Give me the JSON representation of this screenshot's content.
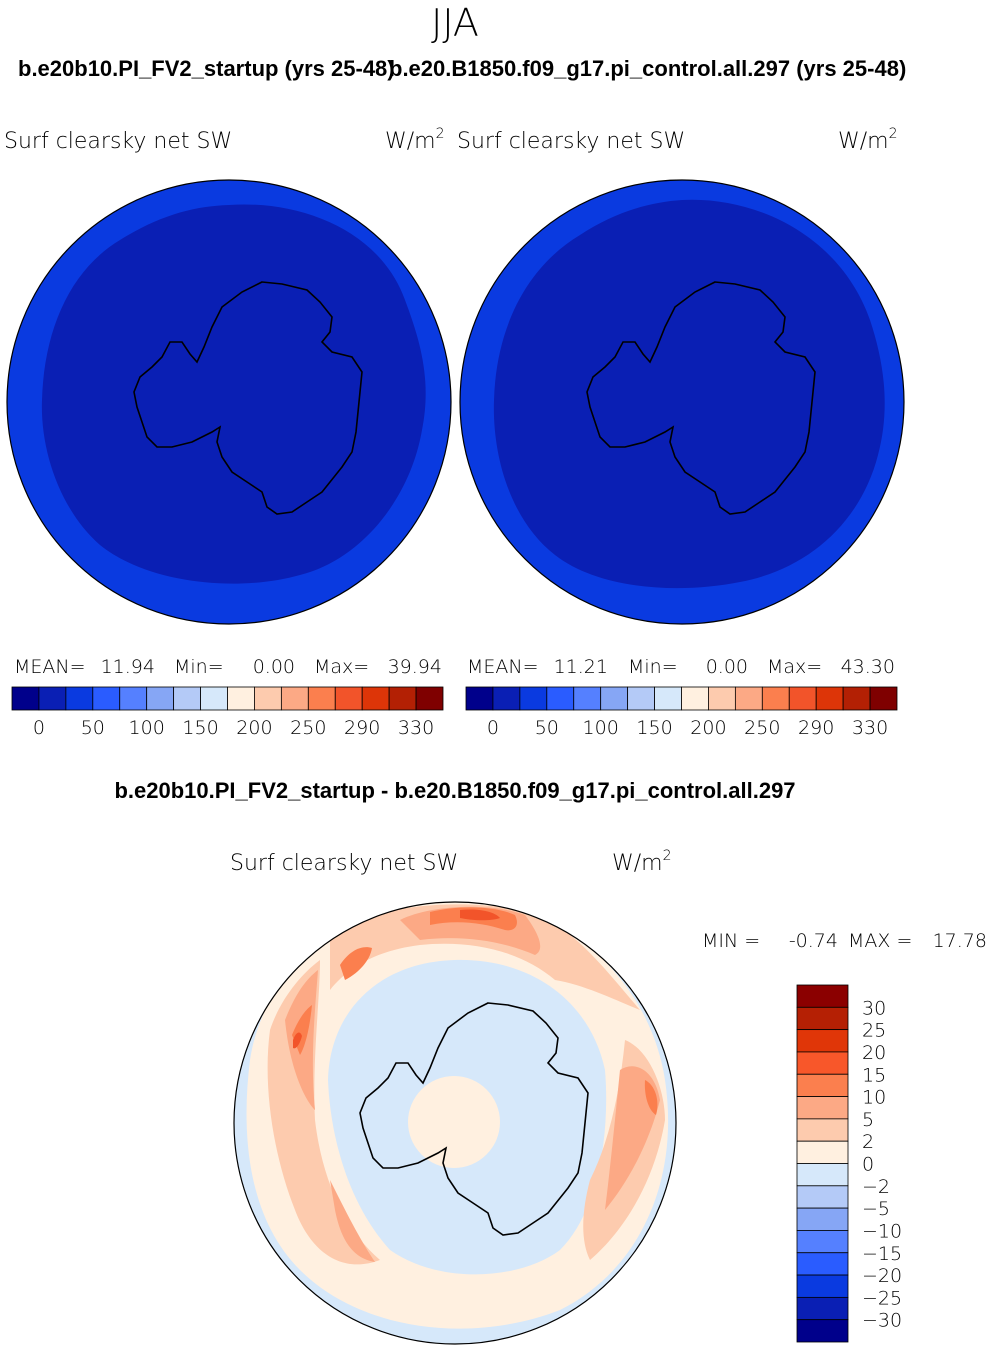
{
  "season": "JJA",
  "panels": [
    {
      "case_title": "b.e20b10.PI_FV2_startup (yrs 25-48)",
      "variable": "Surf clearsky net SW",
      "units_base": "W/m",
      "units_exp": "2",
      "stats": {
        "mean_label": "MEAN=",
        "mean": "11.94",
        "min_label": "Min=",
        "min": "0.00",
        "max_label": "Max=",
        "max": "39.94"
      }
    },
    {
      "case_title": "b.e20.B1850.f09_g17.pi_control.all.297 (yrs 25-48)",
      "variable": "Surf clearsky net SW",
      "units_base": "W/m",
      "units_exp": "2",
      "stats": {
        "mean_label": "MEAN=",
        "mean": "11.21",
        "min_label": "Min=",
        "min": "0.00",
        "max_label": "Max=",
        "max": "43.30"
      }
    }
  ],
  "abs_colorbar": {
    "colors": [
      "#00008b",
      "#0a1fb4",
      "#0a3ae0",
      "#2a5cff",
      "#5580ff",
      "#86a6f5",
      "#b4caf7",
      "#d6e8fa",
      "#fff0e0",
      "#fdcbae",
      "#fca985",
      "#fb7f4e",
      "#f2542a",
      "#dd3508",
      "#b32004",
      "#7f0000"
    ],
    "ticks": [
      "0",
      "50",
      "100",
      "150",
      "200",
      "250",
      "290",
      "330"
    ]
  },
  "diff_panel": {
    "title": "b.e20b10.PI_FV2_startup - b.e20.B1850.f09_g17.pi_control.all.297",
    "variable": "Surf clearsky net SW",
    "units_base": "W/m",
    "units_exp": "2",
    "min_label": "MIN =",
    "min": "-0.74",
    "max_label": "MAX =",
    "max": "17.78"
  },
  "diff_colorbar": {
    "colors_top_to_bottom": [
      "#8b0000",
      "#b52004",
      "#e03608",
      "#f8572a",
      "#fb7f4e",
      "#fca985",
      "#fdcbae",
      "#fff0e0",
      "#d6e8fa",
      "#b4caf7",
      "#86a6f5",
      "#5580ff",
      "#2a5cff",
      "#0a3ae0",
      "#0a1fb4",
      "#00008b"
    ],
    "ticks_top_to_bottom": [
      "30",
      "25",
      "20",
      "15",
      "10",
      "5",
      "2",
      "0",
      "-2",
      "-5",
      "-10",
      "-15",
      "-20",
      "-25",
      "-30"
    ]
  },
  "colors": {
    "map_ocean_outer": "#0a3ae0",
    "map_inner": "#0a1fb4",
    "diff_background": "#d6e8fa",
    "diff_pos1": "#fff0e0",
    "diff_pos2": "#fdcbae",
    "diff_pos3": "#fca985",
    "diff_pos4": "#fb7f4e",
    "diff_pos5": "#f2542a"
  }
}
